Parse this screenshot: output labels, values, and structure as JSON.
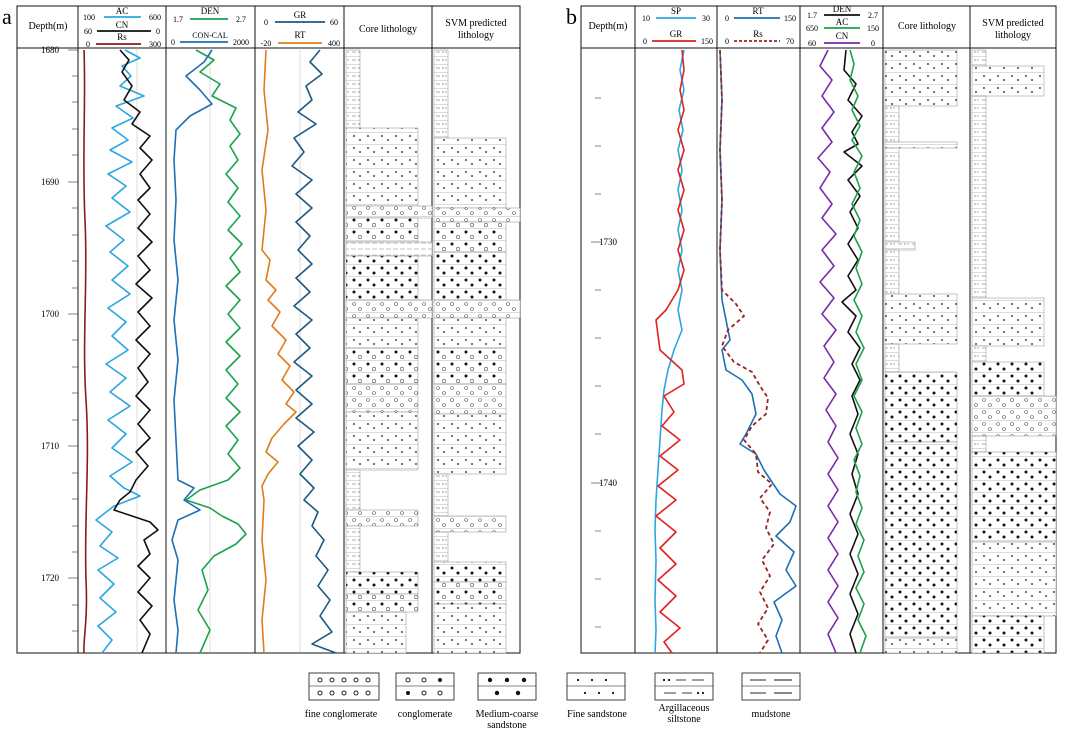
{
  "panel_a": {
    "letter": "a",
    "depth_title": "Depth(m)",
    "depth_ticks": [
      "1680",
      "1690",
      "1700",
      "1710",
      "1720"
    ],
    "track1": {
      "ac": {
        "name": "AC",
        "min": "100",
        "max": "600",
        "color": "#2aa7e0"
      },
      "cn": {
        "name": "CN",
        "min": "60",
        "max": "0",
        "color": "#111111"
      },
      "rs": {
        "name": "Rs",
        "min": "0",
        "max": "300",
        "color": "#8b1a1a"
      }
    },
    "track2": {
      "den": {
        "name": "DEN",
        "min": "1.7",
        "max": "2.7",
        "color": "#1aa34a"
      },
      "cal": {
        "name": "CON-CAL",
        "min": "0",
        "max": "2000",
        "color": "#1f6fb5"
      }
    },
    "track3": {
      "gr": {
        "name": "GR",
        "min": "0",
        "max": "60",
        "color": "#1d5a80"
      },
      "rt": {
        "name": "RT",
        "min": "-20",
        "max": "400",
        "color": "#e07b1a"
      }
    },
    "core_title": "Core lithology",
    "svm_title_1": "SVM predicted",
    "svm_title_2": "lithology"
  },
  "panel_b": {
    "letter": "b",
    "depth_title": "Depth(m)",
    "depth_ticks": [
      "1730",
      "1740"
    ],
    "track1": {
      "sp": {
        "name": "SP",
        "min": "10",
        "max": "30",
        "color": "#2aa7e0"
      },
      "gr": {
        "name": "GR",
        "min": "0",
        "max": "150",
        "color": "#e02020"
      }
    },
    "track2": {
      "rt": {
        "name": "RT",
        "min": "0",
        "max": "150",
        "color": "#1f6fb5"
      },
      "rs": {
        "name": "Rs",
        "min": "0",
        "max": "70",
        "color": "#9b2222"
      }
    },
    "track3": {
      "den": {
        "name": "DEN",
        "min": "1.7",
        "max": "2.7",
        "color": "#111111"
      },
      "ac": {
        "name": "AC",
        "min": "650",
        "max": "150",
        "color": "#1aa34a"
      },
      "cn": {
        "name": "CN",
        "min": "60",
        "max": "0",
        "color": "#7a2aa8"
      }
    },
    "core_title": "Core lithology",
    "svm_title_1": "SVM predicted",
    "svm_title_2": "lithology"
  },
  "legend": [
    {
      "id": "fine-conglomerate",
      "line1": "fine conglomerate",
      "line2": ""
    },
    {
      "id": "conglomerate",
      "line1": "conglomerate",
      "line2": ""
    },
    {
      "id": "medium-coarse-sandstone",
      "line1": "Medium-coarse",
      "line2": "sandstone"
    },
    {
      "id": "fine-sandstone",
      "line1": "Fine sandstone",
      "line2": ""
    },
    {
      "id": "argillaceous-siltstone",
      "line1": "Argillaceous",
      "line2": "siltstone"
    },
    {
      "id": "mudstone",
      "line1": "mudstone",
      "line2": ""
    }
  ]
}
